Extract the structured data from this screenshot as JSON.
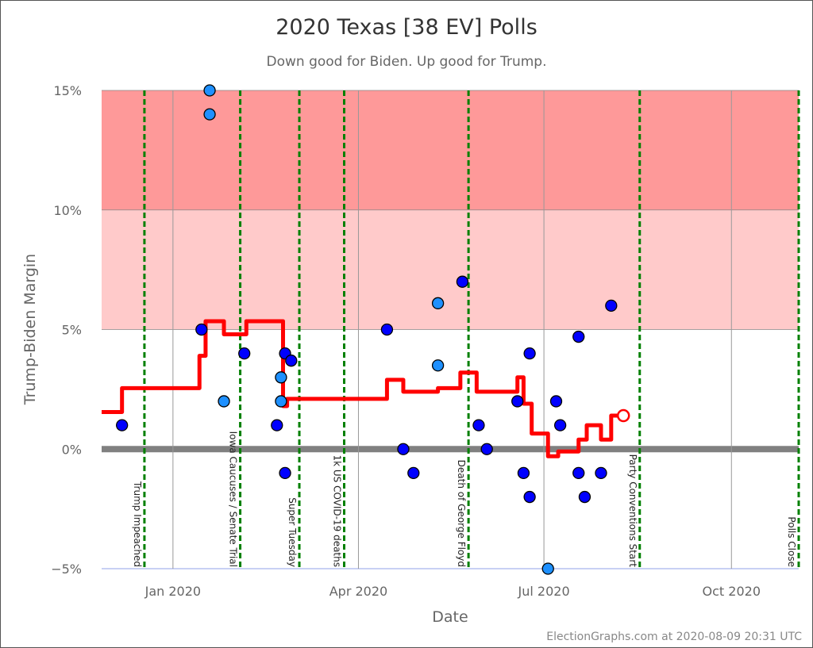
{
  "chart_data": {
    "type": "scatter",
    "title": "2020 Texas [38 EV] Polls",
    "subtitle": "Down good for Biden. Up good for Trump.",
    "xlabel": "Date",
    "ylabel": "Trump-Biden Margin",
    "xlim": [
      "2019-11-27",
      "2020-11-03"
    ],
    "ylim": [
      -5,
      15
    ],
    "x_ticks": [
      {
        "date": "2020-01-01",
        "label": "Jan 2020"
      },
      {
        "date": "2020-04-01",
        "label": "Apr 2020"
      },
      {
        "date": "2020-07-01",
        "label": "Jul 2020"
      },
      {
        "date": "2020-10-01",
        "label": "Oct 2020"
      }
    ],
    "y_ticks": [
      {
        "value": 15,
        "label": "15%"
      },
      {
        "value": 10,
        "label": "10%"
      },
      {
        "value": 5,
        "label": "5%"
      },
      {
        "value": 0,
        "label": "0%"
      },
      {
        "value": -5,
        "label": "−5%"
      }
    ],
    "grid": true,
    "bands": [
      {
        "from": 10,
        "to": 15,
        "color": "#fe9999"
      },
      {
        "from": 5,
        "to": 10,
        "color": "#ffcaca"
      }
    ],
    "colors": {
      "poll": "#0000ff",
      "poll_alt": "#1e90ff",
      "average": "#ff0000",
      "events": "#008000",
      "zero_line": "#808080",
      "bottom_line": "#c8d0f4"
    },
    "polls": [
      {
        "date": "2019-12-07",
        "margin": 1,
        "kind": "poll"
      },
      {
        "date": "2020-01-15",
        "margin": 5,
        "kind": "poll"
      },
      {
        "date": "2020-01-19",
        "margin": 15,
        "kind": "poll_alt"
      },
      {
        "date": "2020-01-19",
        "margin": 14,
        "kind": "poll_alt"
      },
      {
        "date": "2020-01-26",
        "margin": 2,
        "kind": "poll_alt"
      },
      {
        "date": "2020-02-05",
        "margin": 4,
        "kind": "poll"
      },
      {
        "date": "2020-02-21",
        "margin": 1,
        "kind": "poll"
      },
      {
        "date": "2020-02-23",
        "margin": 3,
        "kind": "poll_alt"
      },
      {
        "date": "2020-02-23",
        "margin": 2,
        "kind": "poll_alt"
      },
      {
        "date": "2020-02-25",
        "margin": 4,
        "kind": "poll"
      },
      {
        "date": "2020-02-28",
        "margin": 3.7,
        "kind": "poll"
      },
      {
        "date": "2020-02-25",
        "margin": -1,
        "kind": "poll"
      },
      {
        "date": "2020-04-15",
        "margin": 5,
        "kind": "poll"
      },
      {
        "date": "2020-04-23",
        "margin": 0,
        "kind": "poll"
      },
      {
        "date": "2020-04-28",
        "margin": -1,
        "kind": "poll"
      },
      {
        "date": "2020-05-10",
        "margin": 6.1,
        "kind": "poll_alt"
      },
      {
        "date": "2020-05-10",
        "margin": 3.5,
        "kind": "poll_alt"
      },
      {
        "date": "2020-05-22",
        "margin": 7,
        "kind": "poll"
      },
      {
        "date": "2020-05-30",
        "margin": 1,
        "kind": "poll"
      },
      {
        "date": "2020-06-03",
        "margin": 0,
        "kind": "poll"
      },
      {
        "date": "2020-06-18",
        "margin": 2,
        "kind": "poll"
      },
      {
        "date": "2020-06-21",
        "margin": -1,
        "kind": "poll"
      },
      {
        "date": "2020-06-24",
        "margin": 4,
        "kind": "poll"
      },
      {
        "date": "2020-06-24",
        "margin": -2,
        "kind": "poll"
      },
      {
        "date": "2020-07-03",
        "margin": -5,
        "kind": "poll_alt"
      },
      {
        "date": "2020-07-07",
        "margin": 2,
        "kind": "poll"
      },
      {
        "date": "2020-07-09",
        "margin": 1,
        "kind": "poll"
      },
      {
        "date": "2020-07-18",
        "margin": 4.7,
        "kind": "poll"
      },
      {
        "date": "2020-07-18",
        "margin": -1,
        "kind": "poll"
      },
      {
        "date": "2020-07-21",
        "margin": -2,
        "kind": "poll"
      },
      {
        "date": "2020-07-29",
        "margin": -1,
        "kind": "poll"
      },
      {
        "date": "2020-08-03",
        "margin": 6,
        "kind": "poll"
      }
    ],
    "average": [
      {
        "date": "2019-11-27",
        "margin": 1.55
      },
      {
        "date": "2019-12-07",
        "margin": 2.55
      },
      {
        "date": "2020-01-14",
        "margin": 3.9
      },
      {
        "date": "2020-01-17",
        "margin": 5.35
      },
      {
        "date": "2020-01-26",
        "margin": 4.8
      },
      {
        "date": "2020-02-06",
        "margin": 5.35
      },
      {
        "date": "2020-02-24",
        "margin": 1.8
      },
      {
        "date": "2020-02-26",
        "margin": 2.1
      },
      {
        "date": "2020-04-15",
        "margin": 2.9
      },
      {
        "date": "2020-04-23",
        "margin": 2.4
      },
      {
        "date": "2020-05-10",
        "margin": 2.55
      },
      {
        "date": "2020-05-21",
        "margin": 3.2
      },
      {
        "date": "2020-05-29",
        "margin": 2.4
      },
      {
        "date": "2020-06-18",
        "margin": 3.0
      },
      {
        "date": "2020-06-21",
        "margin": 1.9
      },
      {
        "date": "2020-06-25",
        "margin": 0.65
      },
      {
        "date": "2020-07-03",
        "margin": -0.3
      },
      {
        "date": "2020-07-08",
        "margin": -0.1
      },
      {
        "date": "2020-07-18",
        "margin": 0.4
      },
      {
        "date": "2020-07-22",
        "margin": 1.0
      },
      {
        "date": "2020-07-29",
        "margin": 0.4
      },
      {
        "date": "2020-08-03",
        "margin": 1.4
      },
      {
        "date": "2020-08-09",
        "margin": 1.4
      }
    ],
    "current": {
      "date": "2020-08-09",
      "margin": 1.4
    },
    "events": [
      {
        "date": "2019-12-18",
        "label": "Trump Impeached"
      },
      {
        "date": "2020-02-03",
        "label": "Iowa Caucuses / Senate Trial"
      },
      {
        "date": "2020-03-03",
        "label": "Super Tuesday"
      },
      {
        "date": "2020-03-25",
        "label": "1k US COVID-19 deaths"
      },
      {
        "date": "2020-05-25",
        "label": "Death of George Floyd"
      },
      {
        "date": "2020-08-17",
        "label": "Party Conventions Start"
      },
      {
        "date": "2020-11-03",
        "label": "Polls Close"
      }
    ]
  },
  "credit": "ElectionGraphs.com at 2020-08-09 20:31 UTC"
}
